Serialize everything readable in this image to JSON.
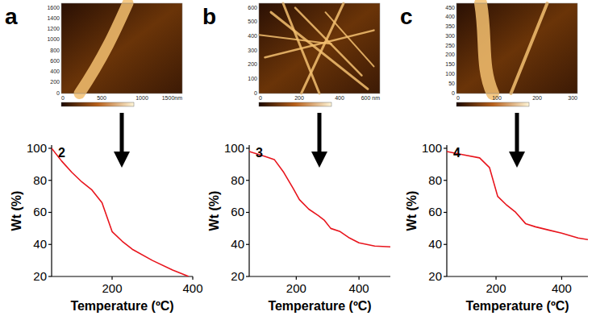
{
  "chart_data": [
    {
      "type": "line",
      "annotation": "2",
      "x_label": "Temperature (ºC)",
      "y_label": "Wt (%)",
      "xlim": [
        50,
        400
      ],
      "ylim": [
        20,
        102
      ],
      "xticks": [
        200,
        400
      ],
      "yticks": [
        20,
        40,
        60,
        80,
        100
      ],
      "color": "#e8141c",
      "x": [
        50,
        75,
        100,
        125,
        150,
        175,
        200,
        225,
        250,
        300,
        350,
        390
      ],
      "values": [
        100,
        92,
        85,
        79,
        74,
        66,
        48,
        42,
        37,
        30,
        24,
        20
      ]
    },
    {
      "type": "line",
      "annotation": "3",
      "x_label": "Temperature (ºC)",
      "y_label": "Wt (%)",
      "xlim": [
        50,
        500
      ],
      "ylim": [
        20,
        102
      ],
      "xticks": [
        200,
        400
      ],
      "yticks": [
        20,
        40,
        60,
        80,
        100
      ],
      "color": "#e8141c",
      "x": [
        50,
        100,
        130,
        160,
        190,
        210,
        240,
        270,
        290,
        310,
        340,
        370,
        400,
        450,
        500
      ],
      "values": [
        98,
        95,
        93,
        85,
        75,
        68,
        62,
        58,
        55,
        50,
        48,
        44,
        41,
        39,
        38.5
      ]
    },
    {
      "type": "line",
      "annotation": "4",
      "x_label": "Temperature (ºC)",
      "y_label": "Wt (%)",
      "xlim": [
        50,
        480
      ],
      "ylim": [
        20,
        102
      ],
      "xticks": [
        200,
        400
      ],
      "yticks": [
        20,
        40,
        60,
        80,
        100
      ],
      "color": "#e8141c",
      "x": [
        50,
        100,
        150,
        180,
        205,
        230,
        260,
        290,
        320,
        360,
        400,
        450,
        480
      ],
      "values": [
        98,
        96,
        94,
        88,
        70,
        65,
        60,
        53,
        51,
        49,
        47,
        44,
        43
      ]
    }
  ],
  "panels": [
    {
      "letter": "a",
      "image_xticks": [
        "0",
        "500",
        "1000",
        "1500nm"
      ],
      "image_yticks": [
        "1600",
        "1400",
        "1200",
        "1000",
        "800",
        "600",
        "400",
        "200",
        "0"
      ]
    },
    {
      "letter": "b",
      "image_xticks": [
        "0",
        "200",
        "400",
        "600 nm"
      ],
      "image_yticks": [
        "600",
        "500",
        "400",
        "300",
        "200",
        "100",
        "0"
      ]
    },
    {
      "letter": "c",
      "image_xticks": [
        "0",
        "100",
        "200",
        "300"
      ],
      "image_yticks": [
        "450",
        "400",
        "350",
        "300",
        "250",
        "200",
        "150",
        "100",
        "50",
        "0"
      ]
    }
  ]
}
